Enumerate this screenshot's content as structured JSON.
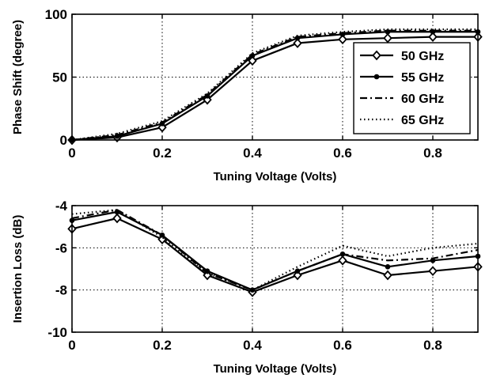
{
  "chart_data": [
    {
      "type": "line",
      "xlabel": "Tuning Voltage (Volts)",
      "ylabel": "Phase Shift (degree)",
      "xlim": [
        0,
        0.9
      ],
      "ylim": [
        0,
        100
      ],
      "xticks": [
        "0",
        "0.2",
        "0.4",
        "0.6",
        "0.8"
      ],
      "yticks": [
        "0",
        "50",
        "100"
      ],
      "grid": true,
      "legend_position": "right",
      "x": [
        0,
        0.1,
        0.2,
        0.3,
        0.4,
        0.5,
        0.6,
        0.7,
        0.8,
        0.9
      ],
      "series": [
        {
          "name": "50 GHz",
          "style": "solid-diamond",
          "values": [
            0,
            2,
            10,
            32,
            63,
            77,
            80,
            81,
            82,
            82
          ]
        },
        {
          "name": "55 GHz",
          "style": "solid-dot",
          "values": [
            0,
            3,
            13,
            35,
            67,
            81,
            84,
            86,
            86,
            86
          ]
        },
        {
          "name": "60 GHz",
          "style": "dashdot",
          "values": [
            0,
            4,
            14,
            36,
            68,
            82,
            85,
            87,
            87,
            87
          ]
        },
        {
          "name": "65 GHz",
          "style": "dotted",
          "values": [
            0,
            5,
            15,
            37,
            69,
            83,
            86,
            88,
            88,
            88
          ]
        }
      ]
    },
    {
      "type": "line",
      "xlabel": "Tuning Voltage (Volts)",
      "ylabel": "Insertion Loss (dB)",
      "xlim": [
        0,
        0.9
      ],
      "ylim": [
        -10,
        -4
      ],
      "xticks": [
        "0",
        "0.2",
        "0.4",
        "0.6",
        "0.8"
      ],
      "yticks": [
        "-10",
        "-8",
        "-6",
        "-4"
      ],
      "grid": true,
      "x": [
        0,
        0.1,
        0.2,
        0.3,
        0.4,
        0.5,
        0.6,
        0.7,
        0.8,
        0.9
      ],
      "series": [
        {
          "name": "50 GHz",
          "style": "solid-diamond",
          "values": [
            -5.1,
            -4.6,
            -5.6,
            -7.3,
            -8.1,
            -7.3,
            -6.6,
            -7.3,
            -7.1,
            -6.9
          ]
        },
        {
          "name": "55 GHz",
          "style": "solid-dot",
          "values": [
            -4.7,
            -4.3,
            -5.4,
            -7.1,
            -8.0,
            -7.1,
            -6.3,
            -6.9,
            -6.6,
            -6.4
          ]
        },
        {
          "name": "60 GHz",
          "style": "dashdot",
          "values": [
            -4.6,
            -4.2,
            -5.4,
            -7.2,
            -8.0,
            -7.1,
            -6.3,
            -6.6,
            -6.5,
            -6.1
          ]
        },
        {
          "name": "65 GHz",
          "style": "dotted",
          "values": [
            -4.4,
            -4.2,
            -5.5,
            -7.2,
            -8.0,
            -6.9,
            -5.9,
            -6.4,
            -6.0,
            -5.8
          ]
        }
      ]
    }
  ]
}
